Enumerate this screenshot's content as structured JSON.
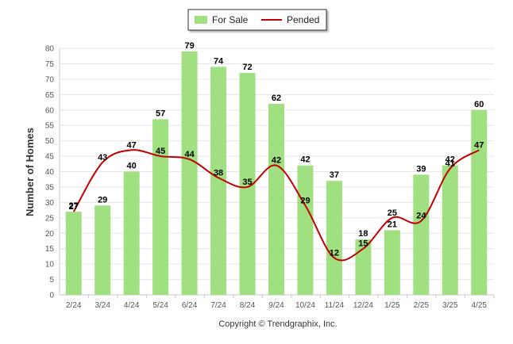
{
  "chart_data": {
    "type": "bar",
    "categories": [
      "2/24",
      "3/24",
      "4/24",
      "5/24",
      "6/24",
      "7/24",
      "8/24",
      "9/24",
      "10/24",
      "11/24",
      "12/24",
      "1/25",
      "2/25",
      "3/25",
      "4/25"
    ],
    "series": [
      {
        "name": "For Sale",
        "type": "bar",
        "color": "#a0e080",
        "values": [
          27,
          29,
          40,
          57,
          79,
          74,
          72,
          62,
          42,
          37,
          18,
          21,
          39,
          42,
          60
        ]
      },
      {
        "name": "Pended",
        "type": "line",
        "color": "#c00000",
        "values": [
          27,
          43,
          47,
          45,
          44,
          38,
          35,
          42,
          29,
          12,
          15,
          25,
          24,
          41,
          47
        ]
      }
    ],
    "ylabel": "Number of Homes",
    "ylim": [
      0,
      80
    ],
    "yticks": [
      0,
      5,
      10,
      15,
      20,
      25,
      30,
      35,
      40,
      45,
      50,
      55,
      60,
      65,
      70,
      75,
      80
    ],
    "grid": true,
    "legend_position": "top-center"
  },
  "footer": {
    "copyright": "Copyright © Trendgraphix, Inc."
  }
}
